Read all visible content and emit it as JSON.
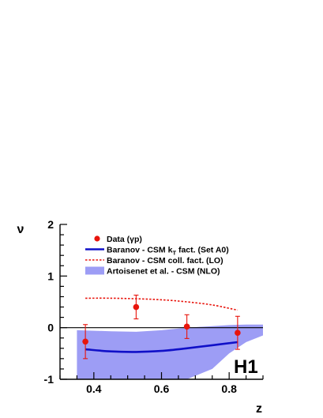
{
  "chart_data": {
    "type": "line",
    "title": "",
    "xlabel": "z",
    "ylabel": "ν",
    "xlim": [
      0.3,
      0.9
    ],
    "ylim": [
      -1,
      2
    ],
    "x_ticks": [
      0.4,
      0.6,
      0.8
    ],
    "x_tick_labels": [
      "0.4",
      "0.6",
      "0.8"
    ],
    "y_ticks": [
      -1,
      0,
      1,
      2
    ],
    "y_tick_labels": [
      "-1",
      "0",
      "1",
      "2"
    ],
    "grid": false,
    "legend_position": "top-left",
    "logo": "H1",
    "colors": {
      "data": "#e8140c",
      "kt": "#1010c8",
      "coll": "#e8140c",
      "nlo_band": "#9d9df5"
    },
    "series": [
      {
        "name": "Data (γp)",
        "kind": "points",
        "x": [
          0.375,
          0.525,
          0.675,
          0.825
        ],
        "y": [
          -0.27,
          0.4,
          0.02,
          -0.1
        ],
        "yerr_low": [
          0.33,
          0.23,
          0.23,
          0.32
        ],
        "yerr_high": [
          0.33,
          0.23,
          0.23,
          0.32
        ]
      },
      {
        "name": "Baranov - CSM kT fact. (Set A0)",
        "legend_main": "Baranov - CSM k",
        "legend_sub": "T",
        "legend_tail": " fact. (Set A0)",
        "kind": "line",
        "x": [
          0.375,
          0.45,
          0.525,
          0.6,
          0.675,
          0.75,
          0.825
        ],
        "y": [
          -0.42,
          -0.46,
          -0.47,
          -0.45,
          -0.4,
          -0.34,
          -0.28
        ]
      },
      {
        "name": "Baranov - CSM coll. fact. (LO)",
        "kind": "dashed-line",
        "x": [
          0.375,
          0.45,
          0.525,
          0.6,
          0.675,
          0.75,
          0.825
        ],
        "y": [
          0.57,
          0.57,
          0.56,
          0.54,
          0.5,
          0.44,
          0.34
        ]
      },
      {
        "name": "Artoisenet et al. - CSM (NLO)",
        "kind": "band",
        "x": [
          0.35,
          0.45,
          0.525,
          0.6,
          0.675,
          0.75,
          0.8,
          0.85,
          0.9
        ],
        "upper": [
          -0.05,
          -0.07,
          -0.08,
          -0.05,
          0.0,
          0.03,
          0.05,
          0.06,
          0.06
        ],
        "lower": [
          -1.0,
          -1.0,
          -1.0,
          -1.0,
          -1.0,
          -0.8,
          -0.5,
          -0.28,
          -0.15
        ]
      }
    ]
  }
}
